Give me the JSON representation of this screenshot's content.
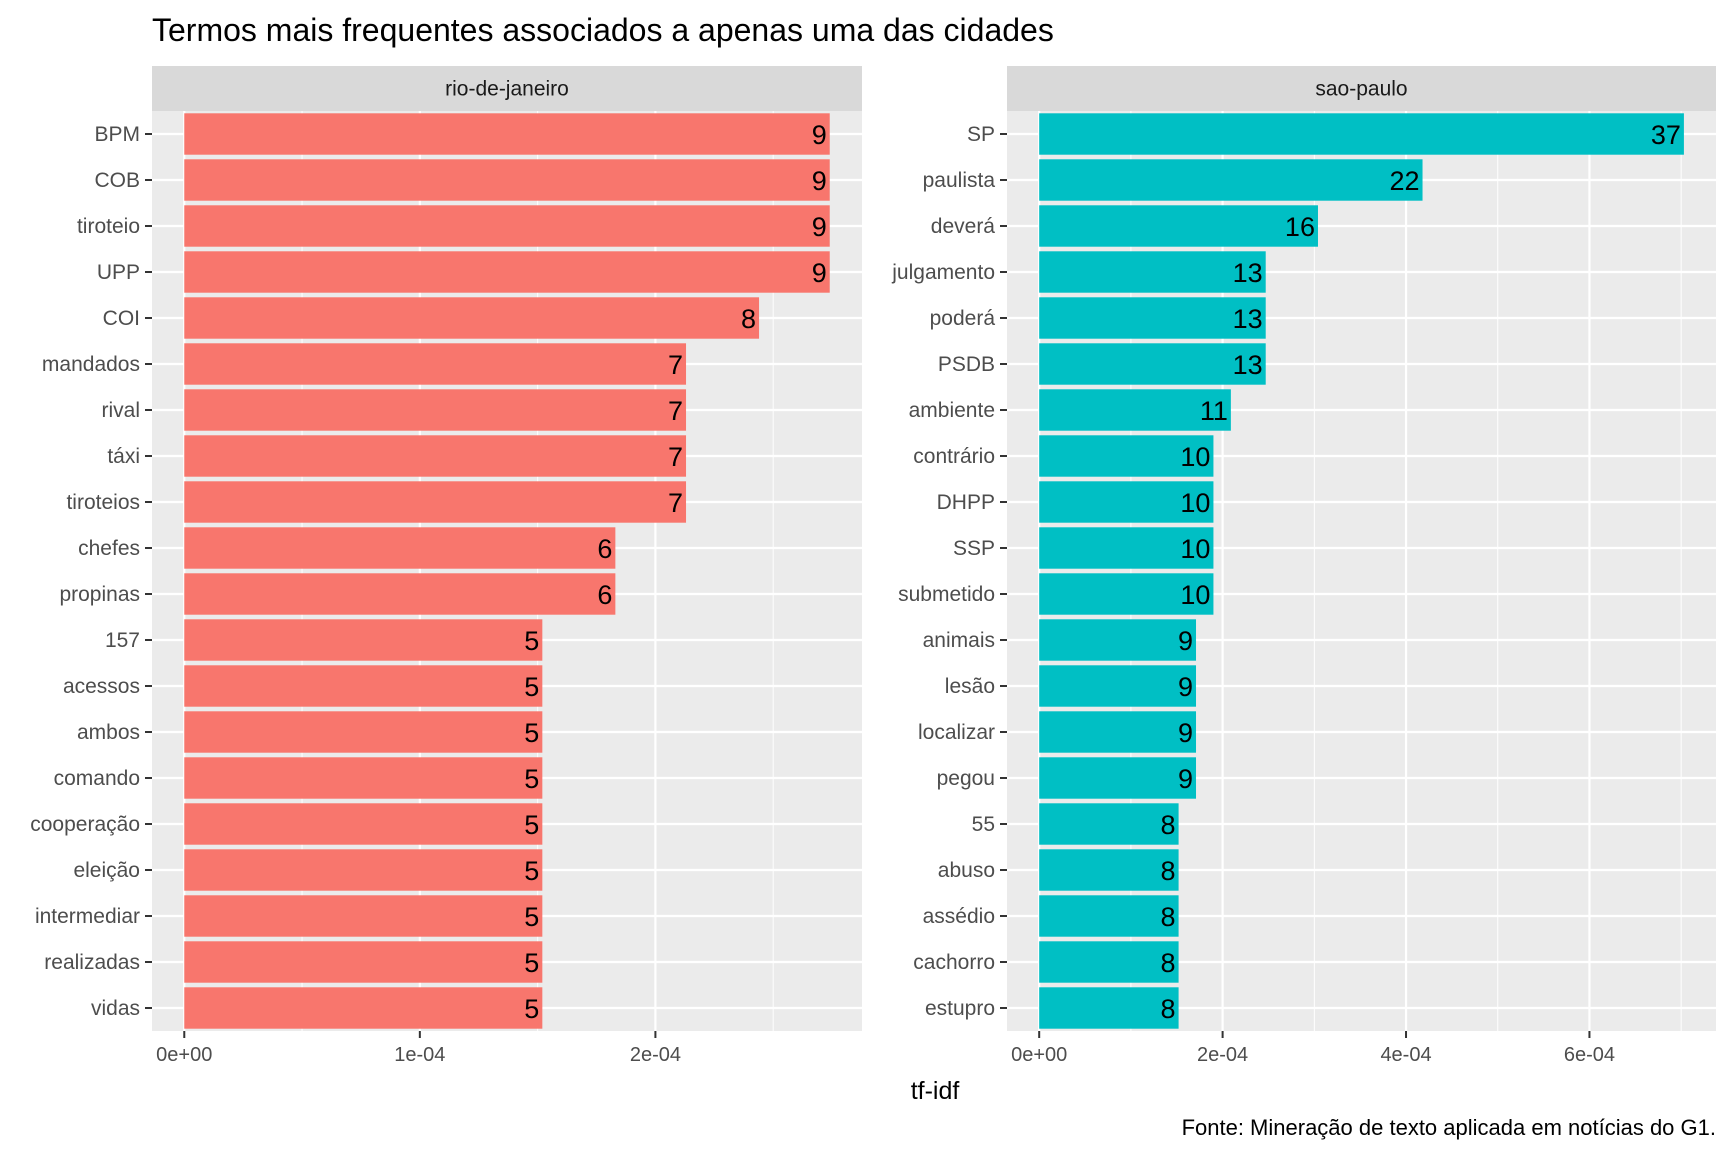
{
  "chart_data": {
    "type": "bar",
    "orientation": "horizontal",
    "title": "Termos mais frequentes associados a apenas uma das cidades",
    "xlabel": "tf-idf",
    "caption": "Fonte: Mineração de texto aplicada em notícias do G1.",
    "grid": true,
    "legend": "none",
    "facets": [
      {
        "name": "rio-de-janeiro",
        "color": "#F8766D",
        "xlim": [
          -1.37e-05,
          0.0002877
        ],
        "xticks": [
          0,
          0.0001,
          0.0002
        ],
        "xtick_labels": [
          "0e+00",
          "1e-04",
          "2e-04"
        ],
        "categories": [
          "BPM",
          "COB",
          "tiroteio",
          "UPP",
          "COI",
          "mandados",
          "rival",
          "táxi",
          "tiroteios",
          "chefes",
          "propinas",
          "157",
          "acessos",
          "ambos",
          "comando",
          "cooperação",
          "eleição",
          "intermediar",
          "realizadas",
          "vidas"
        ],
        "values": [
          0.000274,
          0.000274,
          0.000274,
          0.000274,
          0.000244,
          0.000213,
          0.000213,
          0.000213,
          0.000213,
          0.000183,
          0.000183,
          0.000152,
          0.000152,
          0.000152,
          0.000152,
          0.000152,
          0.000152,
          0.000152,
          0.000152,
          0.000152
        ],
        "labels": [
          "9",
          "9",
          "9",
          "9",
          "8",
          "7",
          "7",
          "7",
          "7",
          "6",
          "6",
          "5",
          "5",
          "5",
          "5",
          "5",
          "5",
          "5",
          "5",
          "5"
        ]
      },
      {
        "name": "sao-paulo",
        "color": "#00BFC4",
        "xlim": [
          -3.51e-05,
          0.000738
        ],
        "xticks": [
          0,
          0.0002,
          0.0004,
          0.0006
        ],
        "xtick_labels": [
          "0e+00",
          "2e-04",
          "4e-04",
          "6e-04"
        ],
        "categories": [
          "SP",
          "paulista",
          "deverá",
          "julgamento",
          "poderá",
          "PSDB",
          "ambiente",
          "contrário",
          "DHPP",
          "SSP",
          "submetido",
          "animais",
          "lesão",
          "localizar",
          "pegou",
          "55",
          "abuso",
          "assédio",
          "cachorro",
          "estupro"
        ],
        "values": [
          0.000703,
          0.000418,
          0.000304,
          0.000247,
          0.000247,
          0.000247,
          0.000209,
          0.00019,
          0.00019,
          0.00019,
          0.00019,
          0.000171,
          0.000171,
          0.000171,
          0.000171,
          0.000152,
          0.000152,
          0.000152,
          0.000152,
          0.000152
        ],
        "labels": [
          "37",
          "22",
          "16",
          "13",
          "13",
          "13",
          "11",
          "10",
          "10",
          "10",
          "10",
          "9",
          "9",
          "9",
          "9",
          "8",
          "8",
          "8",
          "8",
          "8"
        ]
      }
    ]
  }
}
